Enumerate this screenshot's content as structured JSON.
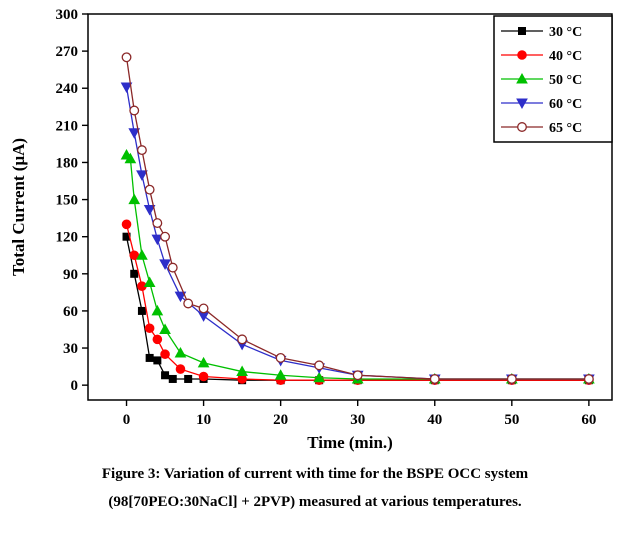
{
  "figure": {
    "caption_line1": "Figure 3: Variation of current with time for the BSPE OCC system",
    "caption_line2": "(98[70PEO:30NaCl] + 2PVP) measured at various temperatures."
  },
  "chart_data": {
    "type": "line",
    "title": "",
    "xlabel": "Time (min.)",
    "ylabel": "Total Current (μA)",
    "xlim": [
      -5,
      63
    ],
    "ylim": [
      -12,
      300
    ],
    "xticks": [
      0,
      10,
      20,
      30,
      40,
      50,
      60
    ],
    "yticks": [
      0,
      30,
      60,
      90,
      120,
      150,
      180,
      210,
      240,
      270,
      300
    ],
    "grid": false,
    "legend_position": "top-right",
    "series": [
      {
        "name": "30 °C",
        "color": "#000000",
        "marker": "square",
        "open": false,
        "x": [
          0,
          1,
          2,
          3,
          4,
          5,
          6,
          8,
          10,
          15,
          20,
          25,
          30,
          40,
          50,
          60
        ],
        "y": [
          120,
          90,
          60,
          22,
          20,
          8,
          5,
          5,
          5,
          4,
          4,
          4,
          4,
          4,
          4,
          4
        ]
      },
      {
        "name": "40 °C",
        "color": "#ff0000",
        "marker": "circle",
        "open": false,
        "x": [
          0,
          1,
          2,
          3,
          4,
          5,
          7,
          10,
          15,
          20,
          25,
          30,
          40,
          50,
          60
        ],
        "y": [
          130,
          105,
          80,
          46,
          37,
          25,
          13,
          7,
          5,
          4,
          4,
          4,
          4,
          4,
          4
        ]
      },
      {
        "name": "50 °C",
        "color": "#00c000",
        "marker": "triangle-up",
        "open": false,
        "x": [
          0,
          0.5,
          1,
          2,
          3,
          4,
          5,
          7,
          10,
          15,
          20,
          25,
          30,
          40,
          50,
          60
        ],
        "y": [
          186,
          183,
          150,
          105,
          83,
          60,
          45,
          26,
          18,
          11,
          8,
          6,
          5,
          5,
          5,
          5
        ]
      },
      {
        "name": "60 °C",
        "color": "#2e2ec9",
        "marker": "triangle-down",
        "open": false,
        "x": [
          0,
          1,
          2,
          3,
          4,
          5,
          7,
          10,
          15,
          20,
          25,
          30,
          40,
          50,
          60
        ],
        "y": [
          241,
          204,
          170,
          142,
          118,
          98,
          72,
          56,
          33,
          20,
          14,
          8,
          5,
          5,
          5
        ]
      },
      {
        "name": "65 °C",
        "color": "#8b2828",
        "marker": "circle",
        "open": true,
        "x": [
          0,
          1,
          2,
          3,
          4,
          5,
          6,
          8,
          10,
          15,
          20,
          25,
          30,
          40,
          50,
          60
        ],
        "y": [
          265,
          222,
          190,
          158,
          131,
          120,
          95,
          66,
          62,
          37,
          22,
          16,
          8,
          5,
          5,
          5
        ]
      }
    ]
  }
}
